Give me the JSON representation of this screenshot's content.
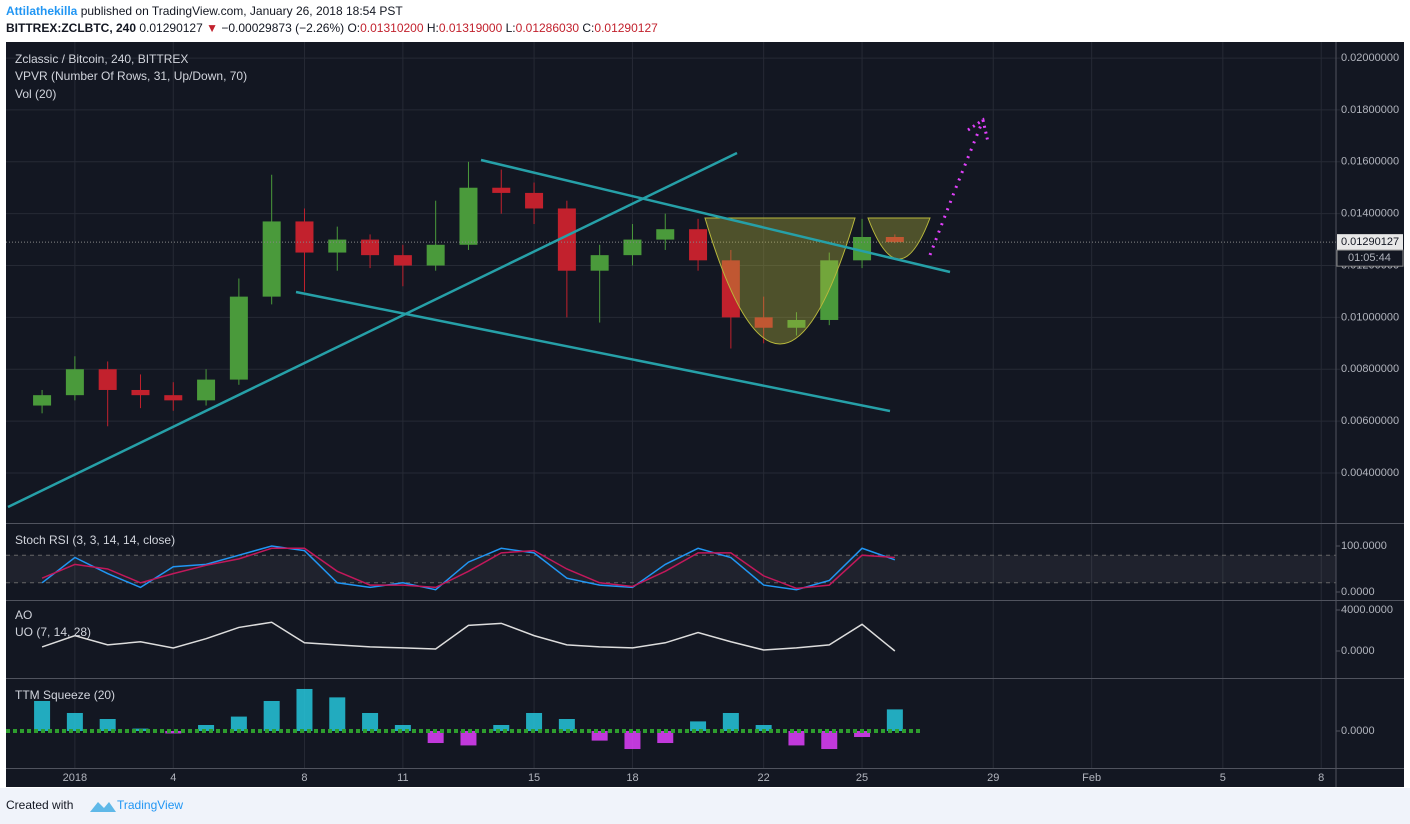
{
  "header": {
    "author": "Attilathekilla",
    "published": " published on TradingView.com, January 26, 2018 18:54 PST",
    "symbol": "BITTREX:ZCLBTC, 240",
    "price": "0.01290127",
    "arrow": "▼",
    "change": "−0.00029873 (−2.26%)",
    "o_label": "O:",
    "o_value": "0.01310200",
    "h_label": "H:",
    "h_value": "0.01319000",
    "l_label": "L:",
    "l_value": "0.01286030",
    "c_label": "C:",
    "c_value": "0.01290127"
  },
  "chart_data": [
    {
      "type": "candlestick",
      "title": "Zclassic / Bitcoin, 240, BITTREX",
      "indicators": [
        "VPVR (Number Of Rows, 31, Up/Down, 70)",
        "Vol (20)"
      ],
      "x": [
        0,
        1,
        2,
        3,
        4,
        5,
        6,
        7,
        8,
        9,
        10,
        11,
        12,
        13,
        14,
        15,
        16,
        17,
        18,
        19,
        20,
        21,
        22,
        23,
        24,
        25,
        26
      ],
      "open": [
        0.0066,
        0.007,
        0.008,
        0.0072,
        0.007,
        0.0068,
        0.0076,
        0.0108,
        0.0137,
        0.0125,
        0.013,
        0.0124,
        0.012,
        0.0128,
        0.015,
        0.0148,
        0.0142,
        0.0118,
        0.0124,
        0.013,
        0.0134,
        0.0122,
        0.01,
        0.0096,
        0.0099,
        0.0122,
        0.0131
      ],
      "high": [
        0.0072,
        0.0085,
        0.0083,
        0.0078,
        0.0075,
        0.008,
        0.0115,
        0.0155,
        0.0142,
        0.0135,
        0.0132,
        0.0128,
        0.0145,
        0.016,
        0.0157,
        0.0152,
        0.0145,
        0.0128,
        0.0136,
        0.014,
        0.0138,
        0.0126,
        0.0108,
        0.0102,
        0.0125,
        0.0138,
        0.0132
      ],
      "low": [
        0.0063,
        0.0068,
        0.0058,
        0.0065,
        0.0064,
        0.0066,
        0.0074,
        0.0105,
        0.011,
        0.0118,
        0.0119,
        0.0112,
        0.0118,
        0.0126,
        0.014,
        0.0136,
        0.01,
        0.0098,
        0.012,
        0.0126,
        0.0118,
        0.0088,
        0.009,
        0.0093,
        0.0097,
        0.0119,
        0.0128603
      ],
      "close": [
        0.007,
        0.008,
        0.0072,
        0.007,
        0.0068,
        0.0076,
        0.0108,
        0.0137,
        0.0125,
        0.013,
        0.0124,
        0.012,
        0.0128,
        0.015,
        0.0148,
        0.0142,
        0.0118,
        0.0124,
        0.013,
        0.0134,
        0.0122,
        0.01,
        0.0096,
        0.0099,
        0.0122,
        0.0131,
        0.01290127
      ],
      "up_color": "#4a9a3b",
      "down_color": "#c2212d",
      "xlim": [
        -1.1,
        39.45
      ],
      "xticks": [
        {
          "value": 1,
          "label": "2018"
        },
        4,
        8,
        11,
        15,
        18,
        22,
        25,
        29,
        {
          "value": 32,
          "label": "Feb"
        },
        {
          "value": 36,
          "label": "5"
        },
        {
          "value": 39,
          "label": "8"
        }
      ],
      "ylim": [
        0.00207,
        0.02062
      ],
      "yticks": [
        {
          "value": 0.004,
          "label": "0.00400000"
        },
        {
          "value": 0.006,
          "label": "0.00600000"
        },
        {
          "value": 0.008,
          "label": "0.00800000"
        },
        {
          "value": 0.01,
          "label": "0.01000000"
        },
        {
          "value": 0.012,
          "label": "0.01200000"
        },
        {
          "value": 0.014,
          "label": "0.01400000"
        },
        {
          "value": 0.016,
          "label": "0.01600000"
        },
        {
          "value": 0.018,
          "label": "0.01800000"
        },
        {
          "value": 0.02,
          "label": "0.02000000"
        }
      ],
      "last_price": 0.01290127,
      "countdown": "01:05:44",
      "grid": true
    },
    {
      "type": "line",
      "title": "Stoch RSI (3, 3, 14, 14, close)",
      "series": [
        {
          "color": "#2196f3",
          "values": [
            20,
            75,
            40,
            10,
            55,
            60,
            80,
            100,
            90,
            20,
            10,
            20,
            5,
            65,
            95,
            85,
            30,
            15,
            10,
            60,
            95,
            75,
            15,
            5,
            25,
            95,
            70
          ]
        },
        {
          "color": "#c2185b",
          "values": [
            30,
            60,
            50,
            20,
            40,
            58,
            72,
            95,
            95,
            45,
            15,
            15,
            10,
            45,
            85,
            90,
            50,
            20,
            12,
            45,
            85,
            85,
            35,
            8,
            15,
            80,
            75
          ]
        }
      ],
      "band": [
        20,
        80
      ],
      "ylim": [
        -17.4,
        147.8
      ],
      "yticks": [
        {
          "value": 100,
          "label": "100.0000"
        },
        {
          "value": 0,
          "label": "0.0000"
        }
      ]
    },
    {
      "type": "line",
      "title": "AO",
      "series": [
        {
          "name": "UO (7, 14, 28)",
          "color": "#dddddd",
          "values": [
            400,
            1500,
            600,
            900,
            300,
            1200,
            2300,
            2800,
            800,
            600,
            400,
            300,
            200,
            2500,
            2700,
            1500,
            600,
            400,
            300,
            800,
            1800,
            900,
            100,
            300,
            600,
            2600,
            0
          ]
        }
      ],
      "ylim": [
        -2634,
        4878
      ],
      "yticks": [
        {
          "value": 4000,
          "label": "4000.0000"
        },
        {
          "value": 0,
          "label": "0.0000"
        }
      ]
    },
    {
      "type": "bar",
      "title": "TTM Squeeze (20)",
      "values": [
        0.0025,
        0.0015,
        0.001,
        0.0002,
        -0.0002,
        0.0005,
        0.0012,
        0.0025,
        0.0035,
        0.0028,
        0.0015,
        0.0005,
        -0.001,
        -0.0012,
        0.0005,
        0.0015,
        0.001,
        -0.0008,
        -0.0015,
        -0.001,
        0.0008,
        0.0015,
        0.0005,
        -0.0012,
        -0.0015,
        -0.0005,
        0.0018
      ],
      "color": "#26c6da",
      "negative_color": "#e040fb",
      "ylim": [
        -0.00308,
        0.00433
      ],
      "yticks": [
        {
          "value": 0,
          "label": "0.0000"
        }
      ]
    }
  ],
  "footer": {
    "created": "Created with",
    "brand": "TradingView"
  }
}
